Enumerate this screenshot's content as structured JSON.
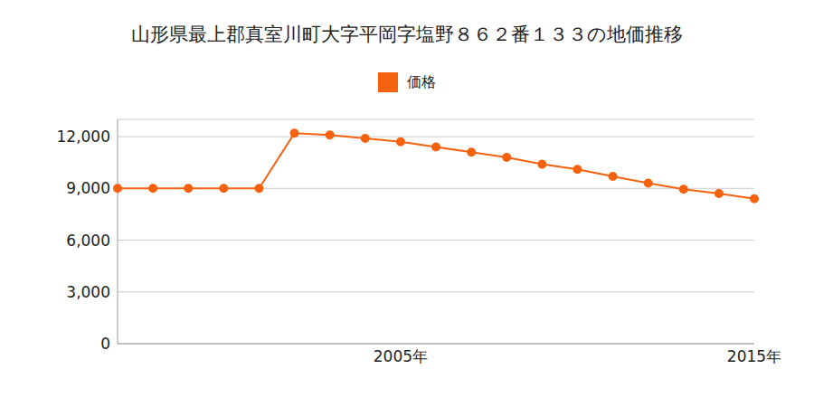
{
  "chart_data": {
    "type": "line",
    "title": "山形県最上郡真室川町大字平岡字塩野８６２番１３３の地価推移",
    "categories": [
      null,
      null,
      null,
      null,
      null,
      null,
      null,
      null,
      "2005年",
      null,
      null,
      null,
      null,
      null,
      null,
      null,
      null,
      null,
      "2015年"
    ],
    "series": [
      {
        "name": "価格",
        "color": "#f5620f",
        "marker": "circle",
        "values": [
          9000,
          9000,
          9000,
          9000,
          9000,
          12200,
          12100,
          11900,
          11700,
          11400,
          11100,
          10800,
          10400,
          10100,
          9700,
          9300,
          8950,
          8700,
          8400
        ]
      }
    ],
    "ylim": [
      0,
      13000
    ],
    "yticks": [
      0,
      {
        "value": 3000,
        "label": "3,000"
      },
      {
        "value": 6000,
        "label": "6,000"
      },
      {
        "value": 9000,
        "label": "9,000"
      },
      {
        "value": 12000,
        "label": "12,000"
      }
    ],
    "grid": true,
    "legend": "top"
  }
}
